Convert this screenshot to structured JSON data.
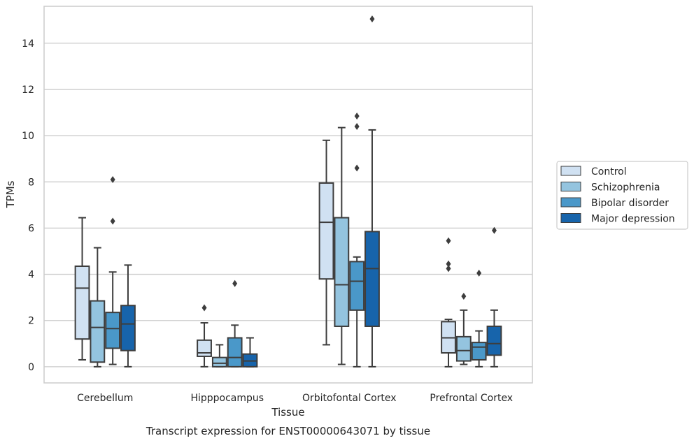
{
  "chart_data": {
    "type": "boxplot",
    "xlabel": "Tissue",
    "ylabel": "TPMs",
    "caption": "Transcript expression for ENST00000643071 by tissue",
    "ylim": [
      -0.7,
      15.6
    ],
    "yticks": [
      0,
      2,
      4,
      6,
      8,
      10,
      12,
      14
    ],
    "grid": "horizontal",
    "legend_placement": "right, outside",
    "categories": [
      "Cerebellum",
      "Hipppocampus",
      "Orbitofontal Cortex",
      "Prefrontal Cortex"
    ],
    "series": [
      {
        "name": "Control",
        "color": "#d0e1f2",
        "boxes": [
          {
            "whislo": 0.3,
            "q1": 1.2,
            "med": 3.4,
            "q3": 4.35,
            "whishi": 6.45,
            "fliers": []
          },
          {
            "whislo": 0.0,
            "q1": 0.45,
            "med": 0.6,
            "q3": 1.15,
            "whishi": 1.9,
            "fliers": [
              2.55
            ]
          },
          {
            "whislo": 0.95,
            "q1": 3.8,
            "med": 6.25,
            "q3": 7.95,
            "whishi": 9.8,
            "fliers": []
          },
          {
            "whislo": 0.0,
            "q1": 0.6,
            "med": 1.25,
            "q3": 1.95,
            "whishi": 2.05,
            "fliers": [
              4.25,
              4.45,
              5.45
            ]
          }
        ]
      },
      {
        "name": "Schizophrenia",
        "color": "#94c4df",
        "boxes": [
          {
            "whislo": 0.0,
            "q1": 0.2,
            "med": 1.7,
            "q3": 2.85,
            "whishi": 5.15,
            "fliers": []
          },
          {
            "whislo": 0.0,
            "q1": 0.0,
            "med": 0.15,
            "q3": 0.4,
            "whishi": 0.95,
            "fliers": []
          },
          {
            "whislo": 0.1,
            "q1": 1.75,
            "med": 3.55,
            "q3": 6.45,
            "whishi": 10.35,
            "fliers": []
          },
          {
            "whislo": 0.1,
            "q1": 0.25,
            "med": 0.7,
            "q3": 1.3,
            "whishi": 2.45,
            "fliers": [
              3.05
            ]
          }
        ]
      },
      {
        "name": "Bipolar disorder",
        "color": "#4a98c9",
        "boxes": [
          {
            "whislo": 0.1,
            "q1": 0.8,
            "med": 1.65,
            "q3": 2.35,
            "whishi": 4.1,
            "fliers": [
              6.3,
              8.1
            ]
          },
          {
            "whislo": 0.0,
            "q1": 0.0,
            "med": 0.4,
            "q3": 1.25,
            "whishi": 1.8,
            "fliers": [
              3.6
            ]
          },
          {
            "whislo": 0.0,
            "q1": 2.45,
            "med": 3.7,
            "q3": 4.55,
            "whishi": 4.75,
            "fliers": [
              8.6,
              10.4,
              10.85
            ]
          },
          {
            "whislo": 0.0,
            "q1": 0.3,
            "med": 0.85,
            "q3": 1.05,
            "whishi": 1.55,
            "fliers": [
              4.05
            ]
          }
        ]
      },
      {
        "name": "Major depression",
        "color": "#1764ab",
        "boxes": [
          {
            "whislo": 0.0,
            "q1": 0.7,
            "med": 1.85,
            "q3": 2.65,
            "whishi": 4.4,
            "fliers": []
          },
          {
            "whislo": 0.0,
            "q1": 0.0,
            "med": 0.25,
            "q3": 0.55,
            "whishi": 1.25,
            "fliers": []
          },
          {
            "whislo": 0.0,
            "q1": 1.75,
            "med": 4.25,
            "q3": 5.85,
            "whishi": 10.25,
            "fliers": [
              15.05
            ]
          },
          {
            "whislo": 0.0,
            "q1": 0.5,
            "med": 1.0,
            "q3": 1.75,
            "whishi": 2.45,
            "fliers": [
              5.9
            ]
          }
        ]
      }
    ]
  },
  "colors": {
    "axis_frame": "#cccccc",
    "grid": "#cccccc",
    "box_edge": "#3d3d3d",
    "text": "#262626"
  }
}
